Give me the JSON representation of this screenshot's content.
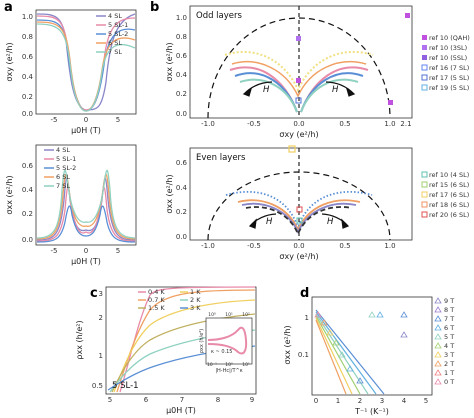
{
  "panels": {
    "a": {
      "label": "a",
      "top": {
        "ylabel": "σxy (e²/h)",
        "xlabel": "μ0H (T)",
        "yticks": [
          "1.0",
          "0.8",
          "0.6",
          "0.4",
          "0.2",
          "0.0"
        ],
        "xticks": [
          "-5",
          "0",
          "5"
        ],
        "legend": [
          "4 SL",
          "5 SL-1",
          "5 SL-2",
          "6 SL",
          "7 SL"
        ]
      },
      "bottom": {
        "ylabel": "σxx (e²/h)",
        "xlabel": "μ0H (T)",
        "yticks": [
          "0.6",
          "0.4",
          "0.2",
          "0.0"
        ],
        "xticks": [
          "-5",
          "0",
          "5"
        ],
        "legend": [
          "4 SL",
          "5 SL-1",
          "5 SL-2",
          "6 SL",
          "7 SL"
        ]
      }
    },
    "b": {
      "label": "b",
      "top": {
        "title": "Odd layers",
        "ylabel": "σxx (e²/h)",
        "xlabel": "σxy (e²/h)",
        "yticks": [
          "1.0",
          "0.8",
          "0.6",
          "0.4",
          "0.2",
          "0.0"
        ],
        "xticks": [
          "-1.0",
          "-0.5",
          "0.0",
          "0.5",
          "1.0",
          "2.1"
        ],
        "arrow_label": "H",
        "legend": [
          "ref 10 (QAH)",
          "ref 10 (3SL)",
          "ref 10 (5SL)",
          "ref 16 (7 SL)",
          "ref 17 (5 SL)",
          "ref 19 (5 SL)"
        ]
      },
      "bottom": {
        "title": "Even layers",
        "ylabel": "σxx (e²/h)",
        "xlabel": "σxy (e²/h)",
        "yticks": [
          "0.6",
          "0.4",
          "0.2",
          "0.0"
        ],
        "xticks": [
          "-1.0",
          "-0.5",
          "0.0",
          "0.5",
          "1.0"
        ],
        "arrow_label": "H",
        "legend": [
          "ref 10 (4 SL)",
          "ref 15 (6 SL)",
          "ref 17 (6 SL)",
          "ref 18 (6 SL)",
          "ref 20 (6 SL)"
        ]
      }
    },
    "c": {
      "label": "c",
      "ylabel": "ρxx (h/e²)",
      "xlabel": "μ0H (T)",
      "yticks": [
        "3",
        "2",
        "1",
        "0.5"
      ],
      "xticks": [
        "5",
        "6",
        "7",
        "8",
        "9"
      ],
      "legend": [
        "0.4 K",
        "0.7 K",
        "1.5 K",
        "2 K",
        "1 K",
        "3 K"
      ],
      "sample_label": "5 SL-1",
      "inset": {
        "ylabel": "ρxx (h/e²)",
        "xlabel": "|H-Hc|/T^κ",
        "kappa": "κ ~ 0.15",
        "xticks": [
          "10⁻¹",
          "10⁰",
          "10¹"
        ],
        "topticks": [
          "10⁰",
          "10¹",
          "10²"
        ]
      }
    },
    "d": {
      "label": "d",
      "ylabel": "σxx (e²/h)",
      "xlabel": "T⁻¹ (K⁻¹)",
      "yticks": [
        "1",
        "0.1"
      ],
      "xticks": [
        "0",
        "1",
        "2",
        "3",
        "4",
        "5"
      ],
      "legend": [
        "9 T",
        "8 T",
        "7 T",
        "6 T",
        "5 T",
        "4 T",
        "3 T",
        "2 T",
        "1 T",
        "0 T"
      ]
    }
  },
  "colors": {
    "s4": "#8a86c8",
    "s5a": "#e88aa8",
    "s5b": "#5a8fd6",
    "s6": "#f0a062",
    "s7": "#8fd1c0",
    "b_refs_odd": [
      "#c050e0",
      "#b070f0",
      "#9060e0",
      "#6080f0",
      "#5070d0",
      "#60b0e0"
    ],
    "b_refs_even": [
      "#60c0b0",
      "#a0d070",
      "#f0d060",
      "#f09060",
      "#e05050"
    ]
  }
}
